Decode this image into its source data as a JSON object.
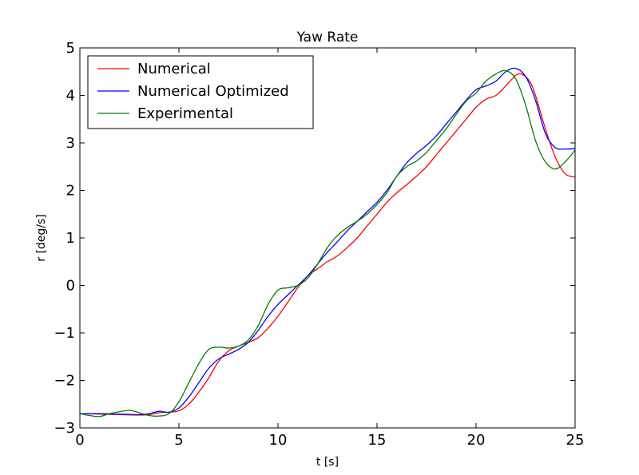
{
  "chart_data": {
    "type": "line",
    "title": "Yaw Rate",
    "xlabel": "t [s]",
    "ylabel": "r [deg/s]",
    "xlim": [
      0,
      25
    ],
    "ylim": [
      -3,
      5
    ],
    "xticks": [
      0,
      5,
      10,
      15,
      20,
      25
    ],
    "yticks": [
      -3,
      -2,
      -1,
      0,
      1,
      2,
      3,
      4,
      5
    ],
    "xtick_labels": [
      "0",
      "5",
      "10",
      "15",
      "20",
      "25"
    ],
    "ytick_labels": [
      "−3",
      "−2",
      "−1",
      "0",
      "1",
      "2",
      "3",
      "4",
      "5"
    ],
    "grid": false,
    "legend": "upper-left",
    "series": [
      {
        "name": "Numerical",
        "color": "#ff0000",
        "points": [
          [
            0,
            -2.7
          ],
          [
            1,
            -2.71
          ],
          [
            2,
            -2.72
          ],
          [
            3,
            -2.73
          ],
          [
            3.5,
            -2.72
          ],
          [
            4,
            -2.68
          ],
          [
            4.5,
            -2.67
          ],
          [
            5,
            -2.64
          ],
          [
            5.5,
            -2.5
          ],
          [
            6,
            -2.25
          ],
          [
            6.5,
            -1.95
          ],
          [
            7,
            -1.6
          ],
          [
            7.5,
            -1.38
          ],
          [
            8,
            -1.28
          ],
          [
            8.5,
            -1.2
          ],
          [
            9,
            -1.1
          ],
          [
            9.5,
            -0.9
          ],
          [
            10,
            -0.65
          ],
          [
            10.5,
            -0.35
          ],
          [
            11,
            -0.05
          ],
          [
            11.5,
            0.2
          ],
          [
            12,
            0.35
          ],
          [
            12.5,
            0.5
          ],
          [
            13,
            0.62
          ],
          [
            13.5,
            0.8
          ],
          [
            14,
            1.0
          ],
          [
            14.5,
            1.25
          ],
          [
            15,
            1.5
          ],
          [
            15.5,
            1.75
          ],
          [
            16,
            1.95
          ],
          [
            16.5,
            2.12
          ],
          [
            17,
            2.3
          ],
          [
            17.5,
            2.5
          ],
          [
            18,
            2.75
          ],
          [
            18.5,
            3.0
          ],
          [
            19,
            3.25
          ],
          [
            19.5,
            3.5
          ],
          [
            20,
            3.75
          ],
          [
            20.5,
            3.92
          ],
          [
            21,
            4.0
          ],
          [
            21.5,
            4.2
          ],
          [
            22,
            4.42
          ],
          [
            22.3,
            4.45
          ],
          [
            22.7,
            4.3
          ],
          [
            23,
            4.0
          ],
          [
            23.5,
            3.3
          ],
          [
            24,
            2.7
          ],
          [
            24.5,
            2.35
          ],
          [
            25,
            2.28
          ]
        ]
      },
      {
        "name": "Numerical Optimized",
        "color": "#0000ff",
        "points": [
          [
            0,
            -2.7
          ],
          [
            1,
            -2.7
          ],
          [
            2,
            -2.71
          ],
          [
            3,
            -2.72
          ],
          [
            3.5,
            -2.7
          ],
          [
            4,
            -2.65
          ],
          [
            4.5,
            -2.67
          ],
          [
            5,
            -2.58
          ],
          [
            5.5,
            -2.35
          ],
          [
            6,
            -2.05
          ],
          [
            6.5,
            -1.75
          ],
          [
            7,
            -1.55
          ],
          [
            7.5,
            -1.45
          ],
          [
            8,
            -1.35
          ],
          [
            8.5,
            -1.2
          ],
          [
            9,
            -0.95
          ],
          [
            9.5,
            -0.65
          ],
          [
            10,
            -0.4
          ],
          [
            10.5,
            -0.2
          ],
          [
            11,
            0.0
          ],
          [
            11.5,
            0.2
          ],
          [
            12,
            0.45
          ],
          [
            12.5,
            0.7
          ],
          [
            13,
            0.92
          ],
          [
            13.5,
            1.15
          ],
          [
            14,
            1.35
          ],
          [
            14.5,
            1.55
          ],
          [
            15,
            1.75
          ],
          [
            15.5,
            2.0
          ],
          [
            16,
            2.3
          ],
          [
            16.5,
            2.58
          ],
          [
            17,
            2.78
          ],
          [
            17.5,
            2.95
          ],
          [
            18,
            3.15
          ],
          [
            18.5,
            3.4
          ],
          [
            19,
            3.65
          ],
          [
            19.5,
            3.9
          ],
          [
            20,
            4.12
          ],
          [
            20.5,
            4.2
          ],
          [
            21,
            4.3
          ],
          [
            21.5,
            4.5
          ],
          [
            22,
            4.57
          ],
          [
            22.5,
            4.4
          ],
          [
            23,
            3.9
          ],
          [
            23.5,
            3.2
          ],
          [
            24,
            2.9
          ],
          [
            24.5,
            2.87
          ],
          [
            25,
            2.88
          ]
        ]
      },
      {
        "name": "Experimental",
        "color": "#008000",
        "points": [
          [
            0,
            -2.7
          ],
          [
            0.5,
            -2.74
          ],
          [
            1,
            -2.76
          ],
          [
            1.5,
            -2.7
          ],
          [
            2,
            -2.66
          ],
          [
            2.5,
            -2.63
          ],
          [
            3,
            -2.68
          ],
          [
            3.5,
            -2.74
          ],
          [
            4,
            -2.75
          ],
          [
            4.5,
            -2.7
          ],
          [
            5,
            -2.45
          ],
          [
            5.5,
            -2.05
          ],
          [
            6,
            -1.65
          ],
          [
            6.5,
            -1.35
          ],
          [
            7,
            -1.3
          ],
          [
            7.5,
            -1.32
          ],
          [
            8,
            -1.28
          ],
          [
            8.5,
            -1.15
          ],
          [
            9,
            -0.85
          ],
          [
            9.5,
            -0.4
          ],
          [
            10,
            -0.1
          ],
          [
            10.5,
            -0.05
          ],
          [
            11,
            0.0
          ],
          [
            11.5,
            0.15
          ],
          [
            12,
            0.45
          ],
          [
            12.5,
            0.8
          ],
          [
            13,
            1.05
          ],
          [
            13.5,
            1.22
          ],
          [
            14,
            1.35
          ],
          [
            14.5,
            1.5
          ],
          [
            15,
            1.7
          ],
          [
            15.5,
            1.95
          ],
          [
            16,
            2.3
          ],
          [
            16.5,
            2.5
          ],
          [
            17,
            2.62
          ],
          [
            17.5,
            2.8
          ],
          [
            18,
            3.05
          ],
          [
            18.5,
            3.3
          ],
          [
            19,
            3.6
          ],
          [
            19.5,
            3.88
          ],
          [
            20,
            4.05
          ],
          [
            20.5,
            4.3
          ],
          [
            21,
            4.45
          ],
          [
            21.5,
            4.52
          ],
          [
            22,
            4.35
          ],
          [
            22.5,
            3.8
          ],
          [
            23,
            3.05
          ],
          [
            23.5,
            2.6
          ],
          [
            24,
            2.45
          ],
          [
            24.5,
            2.6
          ],
          [
            25,
            2.85
          ]
        ]
      }
    ]
  }
}
